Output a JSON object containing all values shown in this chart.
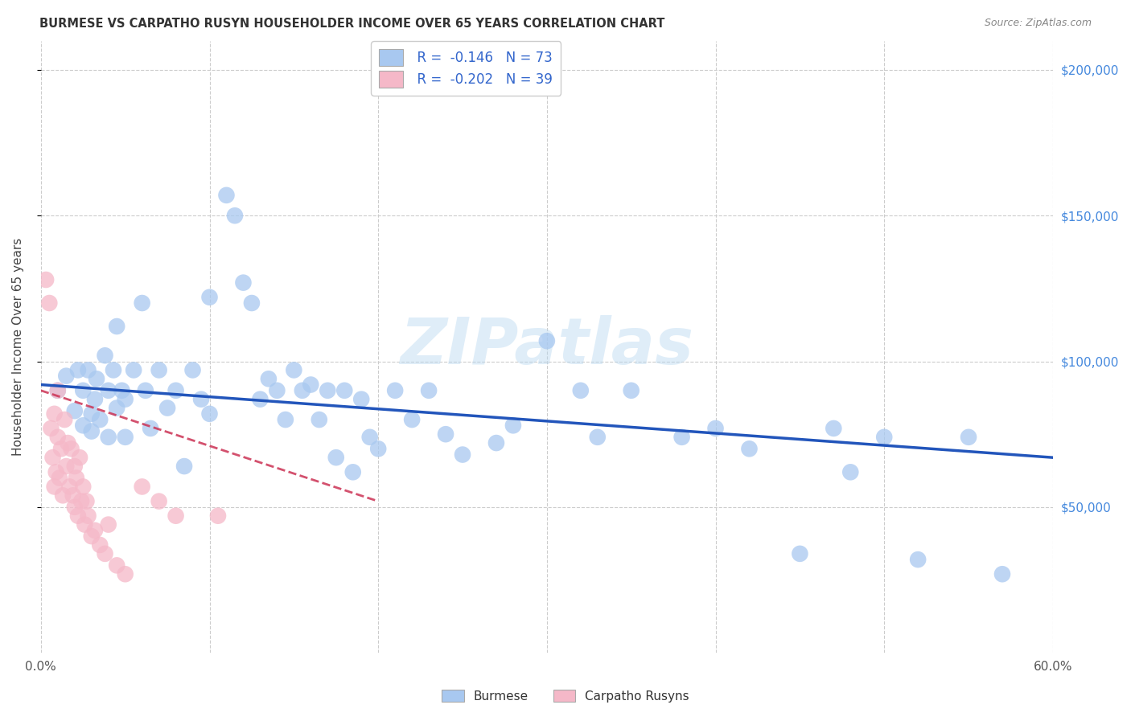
{
  "title": "BURMESE VS CARPATHO RUSYN HOUSEHOLDER INCOME OVER 65 YEARS CORRELATION CHART",
  "source": "Source: ZipAtlas.com",
  "ylabel": "Householder Income Over 65 years",
  "xlim": [
    0,
    0.6
  ],
  "ylim": [
    0,
    210000
  ],
  "ytick_positions": [
    50000,
    100000,
    150000,
    200000
  ],
  "ytick_labels": [
    "$50,000",
    "$100,000",
    "$150,000",
    "$200,000"
  ],
  "burmese_color": "#a8c8f0",
  "carpatho_color": "#f5b8c8",
  "burmese_line_color": "#2255bb",
  "carpatho_line_color": "#cc3355",
  "legend_text_color": "#3366cc",
  "watermark": "ZIPatlas",
  "burmese_x": [
    0.01,
    0.015,
    0.02,
    0.022,
    0.025,
    0.025,
    0.028,
    0.03,
    0.03,
    0.032,
    0.033,
    0.035,
    0.038,
    0.04,
    0.04,
    0.043,
    0.045,
    0.045,
    0.048,
    0.05,
    0.05,
    0.055,
    0.06,
    0.062,
    0.065,
    0.07,
    0.075,
    0.08,
    0.085,
    0.09,
    0.095,
    0.1,
    0.1,
    0.11,
    0.115,
    0.12,
    0.125,
    0.13,
    0.135,
    0.14,
    0.145,
    0.15,
    0.155,
    0.16,
    0.165,
    0.17,
    0.175,
    0.18,
    0.185,
    0.19,
    0.195,
    0.2,
    0.21,
    0.22,
    0.23,
    0.24,
    0.25,
    0.27,
    0.28,
    0.3,
    0.32,
    0.33,
    0.35,
    0.38,
    0.4,
    0.42,
    0.45,
    0.47,
    0.48,
    0.5,
    0.52,
    0.55,
    0.57
  ],
  "burmese_y": [
    90000,
    95000,
    83000,
    97000,
    90000,
    78000,
    97000,
    82000,
    76000,
    87000,
    94000,
    80000,
    102000,
    90000,
    74000,
    97000,
    84000,
    112000,
    90000,
    74000,
    87000,
    97000,
    120000,
    90000,
    77000,
    97000,
    84000,
    90000,
    64000,
    97000,
    87000,
    122000,
    82000,
    157000,
    150000,
    127000,
    120000,
    87000,
    94000,
    90000,
    80000,
    97000,
    90000,
    92000,
    80000,
    90000,
    67000,
    90000,
    62000,
    87000,
    74000,
    70000,
    90000,
    80000,
    90000,
    75000,
    68000,
    72000,
    78000,
    107000,
    90000,
    74000,
    90000,
    74000,
    77000,
    70000,
    34000,
    77000,
    62000,
    74000,
    32000,
    74000,
    27000
  ],
  "carpatho_x": [
    0.003,
    0.005,
    0.006,
    0.007,
    0.008,
    0.008,
    0.009,
    0.01,
    0.01,
    0.011,
    0.012,
    0.013,
    0.014,
    0.015,
    0.016,
    0.017,
    0.018,
    0.019,
    0.02,
    0.02,
    0.021,
    0.022,
    0.023,
    0.024,
    0.025,
    0.026,
    0.027,
    0.028,
    0.03,
    0.032,
    0.035,
    0.038,
    0.04,
    0.045,
    0.05,
    0.06,
    0.07,
    0.08,
    0.105
  ],
  "carpatho_y": [
    128000,
    120000,
    77000,
    67000,
    57000,
    82000,
    62000,
    90000,
    74000,
    60000,
    70000,
    54000,
    80000,
    64000,
    72000,
    57000,
    70000,
    54000,
    64000,
    50000,
    60000,
    47000,
    67000,
    52000,
    57000,
    44000,
    52000,
    47000,
    40000,
    42000,
    37000,
    34000,
    44000,
    30000,
    27000,
    57000,
    52000,
    47000,
    47000
  ],
  "burmese_trend_x": [
    0.0,
    0.6
  ],
  "burmese_trend_y": [
    92000,
    67000
  ],
  "carpatho_trend_x": [
    0.0,
    0.2
  ],
  "carpatho_trend_y": [
    90000,
    52000
  ]
}
